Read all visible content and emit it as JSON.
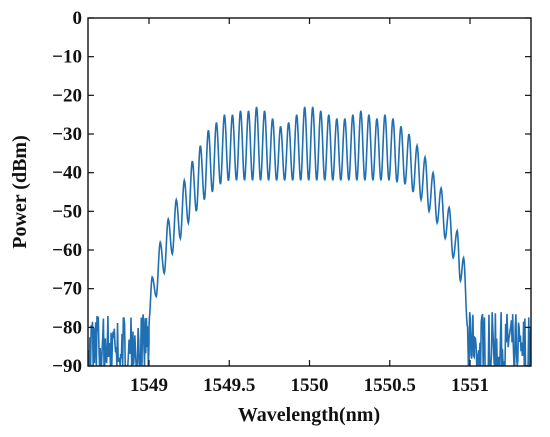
{
  "chart_data": {
    "type": "line",
    "title": "",
    "xlabel": "Wavelength(nm)",
    "ylabel": "Power (dBm)",
    "xlim": [
      1548.62,
      1551.38
    ],
    "ylim": [
      -90,
      0
    ],
    "xticks": [
      1549,
      1549.5,
      1550,
      1550.5,
      1551
    ],
    "xtick_labels": [
      "1549",
      "1549.5",
      "1550",
      "1550.5",
      "1551"
    ],
    "yticks": [
      0,
      -10,
      -20,
      -30,
      -40,
      -50,
      -60,
      -70,
      -80,
      -90
    ],
    "ytick_labels": [
      "0",
      "−10",
      "−20",
      "−30",
      "−40",
      "−50",
      "−60",
      "−70",
      "−80",
      "−90"
    ],
    "grid": false,
    "line_color": "#1f6fb2",
    "series": [
      {
        "description_shape": "comb spectrum",
        "peaks": [
          {
            "x": 1549.02,
            "y": -67
          },
          {
            "x": 1549.07,
            "y": -58
          },
          {
            "x": 1549.12,
            "y": -52
          },
          {
            "x": 1549.17,
            "y": -47
          },
          {
            "x": 1549.22,
            "y": -42
          },
          {
            "x": 1549.27,
            "y": -37
          },
          {
            "x": 1549.32,
            "y": -33
          },
          {
            "x": 1549.37,
            "y": -29
          },
          {
            "x": 1549.42,
            "y": -27
          },
          {
            "x": 1549.47,
            "y": -25
          },
          {
            "x": 1549.52,
            "y": -25
          },
          {
            "x": 1549.57,
            "y": -24
          },
          {
            "x": 1549.62,
            "y": -24
          },
          {
            "x": 1549.67,
            "y": -23
          },
          {
            "x": 1549.72,
            "y": -24
          },
          {
            "x": 1549.77,
            "y": -26
          },
          {
            "x": 1549.82,
            "y": -28
          },
          {
            "x": 1549.87,
            "y": -27
          },
          {
            "x": 1549.92,
            "y": -25
          },
          {
            "x": 1549.97,
            "y": -23
          },
          {
            "x": 1550.02,
            "y": -23
          },
          {
            "x": 1550.07,
            "y": -24
          },
          {
            "x": 1550.12,
            "y": -25
          },
          {
            "x": 1550.17,
            "y": -26
          },
          {
            "x": 1550.22,
            "y": -26
          },
          {
            "x": 1550.27,
            "y": -25
          },
          {
            "x": 1550.32,
            "y": -24
          },
          {
            "x": 1550.37,
            "y": -25
          },
          {
            "x": 1550.42,
            "y": -26
          },
          {
            "x": 1550.47,
            "y": -25
          },
          {
            "x": 1550.52,
            "y": -26
          },
          {
            "x": 1550.57,
            "y": -28
          },
          {
            "x": 1550.62,
            "y": -30
          },
          {
            "x": 1550.67,
            "y": -33
          },
          {
            "x": 1550.72,
            "y": -36
          },
          {
            "x": 1550.77,
            "y": -40
          },
          {
            "x": 1550.82,
            "y": -44
          },
          {
            "x": 1550.87,
            "y": -49
          },
          {
            "x": 1550.92,
            "y": -55
          },
          {
            "x": 1550.96,
            "y": -62
          }
        ],
        "troughs": [
          {
            "x": 1549.045,
            "y": -72
          },
          {
            "x": 1549.095,
            "y": -66
          },
          {
            "x": 1549.145,
            "y": -61
          },
          {
            "x": 1549.195,
            "y": -57
          },
          {
            "x": 1549.245,
            "y": -53
          },
          {
            "x": 1549.295,
            "y": -50
          },
          {
            "x": 1549.345,
            "y": -47
          },
          {
            "x": 1549.395,
            "y": -45
          },
          {
            "x": 1549.445,
            "y": -43
          },
          {
            "x": 1549.5,
            "y": -42
          },
          {
            "x": 1550.0,
            "y": -42
          },
          {
            "x": 1550.5,
            "y": -42
          },
          {
            "x": 1550.595,
            "y": -43
          },
          {
            "x": 1550.645,
            "y": -45
          },
          {
            "x": 1550.695,
            "y": -47
          },
          {
            "x": 1550.745,
            "y": -50
          },
          {
            "x": 1550.795,
            "y": -53
          },
          {
            "x": 1550.845,
            "y": -57
          },
          {
            "x": 1550.895,
            "y": -62
          },
          {
            "x": 1550.94,
            "y": -68
          }
        ],
        "noise_floor": {
          "left_range": [
            1548.62,
            1549.0
          ],
          "right_range": [
            1550.99,
            1551.38
          ],
          "min": -90,
          "max": -76
        }
      }
    ]
  }
}
